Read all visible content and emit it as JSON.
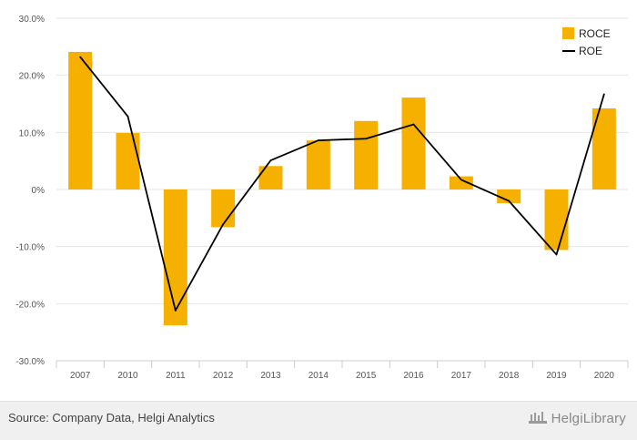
{
  "chart_data": {
    "type": "bar",
    "categories": [
      "2007",
      "2010",
      "2011",
      "2012",
      "2013",
      "2014",
      "2015",
      "2016",
      "2017",
      "2018",
      "2019",
      "2020"
    ],
    "series": [
      {
        "name": "ROCE",
        "type": "bar",
        "color": "#f5b000",
        "values": [
          24.1,
          9.9,
          -23.8,
          -6.6,
          4.1,
          8.6,
          12.0,
          16.1,
          2.3,
          -2.4,
          -10.6,
          14.2
        ]
      },
      {
        "name": "ROE",
        "type": "line",
        "color": "#000000",
        "values": [
          23.2,
          12.8,
          -21.2,
          -6.1,
          5.1,
          8.6,
          8.9,
          11.4,
          1.7,
          -2.0,
          -11.4,
          16.7
        ]
      }
    ],
    "y_ticks": [
      "30.0%",
      "20.0%",
      "10.0%",
      "0%",
      "-10.0%",
      "-20.0%",
      "-30.0%"
    ],
    "ylim": [
      -30,
      30
    ],
    "grid": true,
    "legend_position": "top-right"
  },
  "footer": {
    "source": "Source: Company Data, Helgi Analytics",
    "brand": "HelgiLibrary"
  },
  "colors": {
    "footer_bg": "#f0f0f0",
    "grid": "#e6e6e6"
  }
}
